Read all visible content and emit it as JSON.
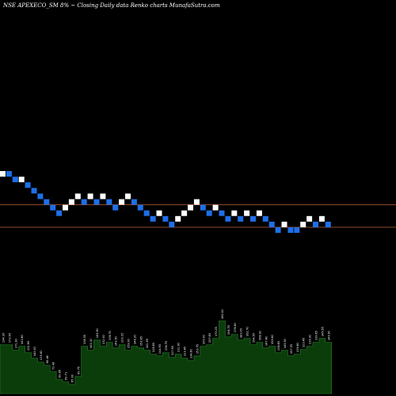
{
  "chart_data": {
    "type": "renko",
    "title": "NSE APEXECO_SM 8% ~  Closing Daily data  Renko  charts MunafaSutra.com",
    "bricks": [
      {
        "dir": "up",
        "level": 1
      },
      {
        "dir": "down",
        "level": 1
      },
      {
        "dir": "down",
        "level": 0
      },
      {
        "dir": "up",
        "level": 0
      },
      {
        "dir": "down",
        "level": -1
      },
      {
        "dir": "down",
        "level": -2
      },
      {
        "dir": "down",
        "level": -3
      },
      {
        "dir": "down",
        "level": -4
      },
      {
        "dir": "down",
        "level": -5
      },
      {
        "dir": "down",
        "level": -6
      },
      {
        "dir": "up",
        "level": -5
      },
      {
        "dir": "up",
        "level": -4
      },
      {
        "dir": "up",
        "level": -3
      },
      {
        "dir": "down",
        "level": -4
      },
      {
        "dir": "up",
        "level": -3
      },
      {
        "dir": "down",
        "level": -4
      },
      {
        "dir": "up",
        "level": -3
      },
      {
        "dir": "down",
        "level": -4
      },
      {
        "dir": "down",
        "level": -5
      },
      {
        "dir": "up",
        "level": -4
      },
      {
        "dir": "up",
        "level": -3
      },
      {
        "dir": "down",
        "level": -4
      },
      {
        "dir": "down",
        "level": -5
      },
      {
        "dir": "down",
        "level": -6
      },
      {
        "dir": "down",
        "level": -7
      },
      {
        "dir": "up",
        "level": -6
      },
      {
        "dir": "down",
        "level": -7
      },
      {
        "dir": "down",
        "level": -8
      },
      {
        "dir": "up",
        "level": -7
      },
      {
        "dir": "up",
        "level": -6
      },
      {
        "dir": "up",
        "level": -5
      },
      {
        "dir": "up",
        "level": -4
      },
      {
        "dir": "down",
        "level": -5
      },
      {
        "dir": "down",
        "level": -6
      },
      {
        "dir": "up",
        "level": -5
      },
      {
        "dir": "down",
        "level": -6
      },
      {
        "dir": "down",
        "level": -7
      },
      {
        "dir": "up",
        "level": -6
      },
      {
        "dir": "down",
        "level": -7
      },
      {
        "dir": "up",
        "level": -6
      },
      {
        "dir": "down",
        "level": -7
      },
      {
        "dir": "up",
        "level": -6
      },
      {
        "dir": "down",
        "level": -7
      },
      {
        "dir": "down",
        "level": -8
      },
      {
        "dir": "down",
        "level": -9
      },
      {
        "dir": "up",
        "level": -8
      },
      {
        "dir": "down",
        "level": -9
      },
      {
        "dir": "down",
        "level": -9
      },
      {
        "dir": "up",
        "level": -8
      },
      {
        "dir": "up",
        "level": -7
      },
      {
        "dir": "down",
        "level": -8
      },
      {
        "dir": "up",
        "level": -7
      },
      {
        "dir": "down",
        "level": -8
      }
    ],
    "reference_levels": [
      -4.5,
      -8.5
    ],
    "volume_bars": [
      62,
      62,
      55,
      60,
      52,
      45,
      40,
      36,
      28,
      18,
      15,
      12,
      22,
      60,
      55,
      68,
      60,
      65,
      58,
      62,
      55,
      60,
      58,
      55,
      50,
      48,
      52,
      46,
      50,
      45,
      42,
      48,
      60,
      62,
      70,
      92,
      72,
      75,
      68,
      70,
      62,
      65,
      58,
      60,
      52,
      55,
      48,
      50,
      56,
      60,
      65,
      70,
      65
    ],
    "volume_labels": [
      "134.16",
      "173.95",
      "171.90",
      "143.80",
      "131.96",
      "140.00",
      "119.40",
      "98.46",
      "71.40",
      "69.85",
      "59.71",
      "65.00",
      "99.75",
      "138.35",
      "163.10",
      "149.50",
      "132.00",
      "138.70",
      "140.50",
      "133.15",
      "159.00",
      "144.20",
      "150.65",
      "141.95",
      "128.85",
      "114.95",
      "138.75",
      "127.95",
      "111.90",
      "123.45",
      "134.60",
      "150.75",
      "150.00",
      "157.65",
      "170.25",
      "160.00",
      "196.75",
      "178.60",
      "183.05",
      "162.70",
      "154.95",
      "168.30",
      "147.40",
      "155.60",
      "138.65",
      "145.90",
      "157.35",
      "139.80",
      "123.45",
      "135.30",
      "139.65",
      "145.55",
      "149.50"
    ],
    "grid": false
  }
}
